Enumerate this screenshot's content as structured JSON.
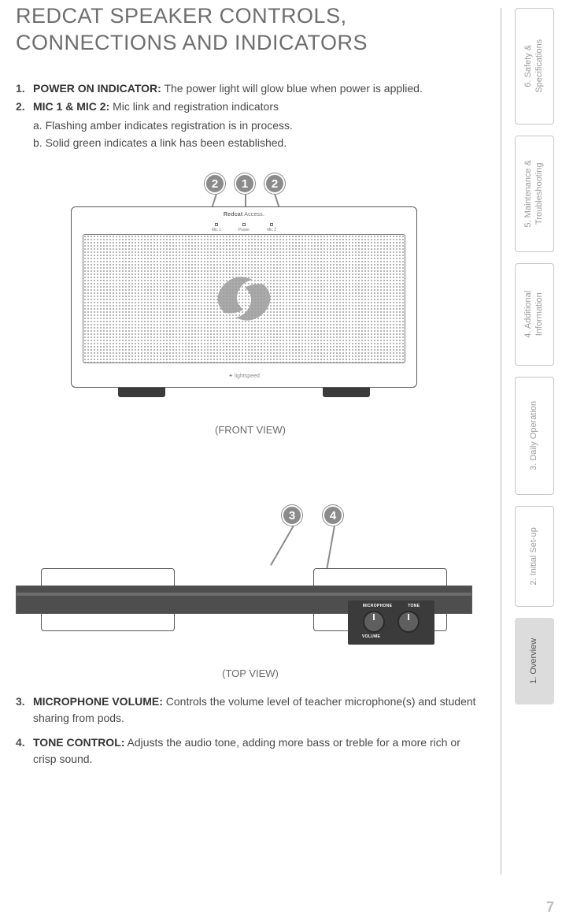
{
  "title_l1": "REDCAT SPEAKER CONTROLS,",
  "title_l2": "CONNECTIONS AND INDICATORS",
  "item1": {
    "num": "1.",
    "lead": "POWER ON INDICATOR:",
    "text": " The power light will glow blue when power is applied."
  },
  "item2": {
    "num": "2.",
    "lead": "MIC 1 & MIC 2:",
    "text": " Mic link and registration indicators",
    "sub_a": "a. Flashing amber indicates registration is in process.",
    "sub_b": "b. Solid green indicates a link has been established."
  },
  "front": {
    "brand": "Redcat",
    "brand_suffix": " Access.",
    "ind_left": "Mic 1",
    "ind_mid": "Power",
    "ind_right": "Mic 2",
    "bottom_label": "✦ lightspeed",
    "caption": "(FRONT VIEW)",
    "callouts": {
      "a": "2",
      "b": "1",
      "c": "2"
    },
    "grille_pattern_color": "#9c9c9c",
    "swirl_color": "#9c9c9c"
  },
  "top": {
    "caption": "(TOP VIEW)",
    "labels": {
      "mic": "MICROPHONE",
      "tone": "TONE",
      "volume": "VOLUME"
    },
    "callouts": {
      "a": "3",
      "b": "4"
    }
  },
  "item3": {
    "num": "3.",
    "lead": "MICROPHONE VOLUME:",
    "text": " Controls the volume level of teacher microphone(s) and student sharing from pods."
  },
  "item4": {
    "num": "4.",
    "lead": "TONE CONTROL:",
    "text": " Adjusts the audio tone, adding more bass or treble for a more rich or crisp sound."
  },
  "tabs": {
    "t6": "6. Safety &\nSpecifications",
    "t5": "5. Maintenance &\nTroubleshooting",
    "t4": "4. Additional\nInformation",
    "t3": "3. Daily Operation",
    "t2": "2. Initial Set-up",
    "t1": "1. Overview"
  },
  "tab_heights": {
    "t6": 148,
    "t5": 148,
    "t4": 130,
    "t3": 150,
    "t2": 128,
    "t1": 110
  },
  "page_number": "7"
}
